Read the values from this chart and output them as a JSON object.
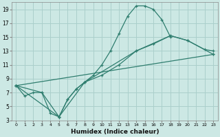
{
  "xlabel": "Humidex (Indice chaleur)",
  "xlim": [
    -0.5,
    23.5
  ],
  "ylim": [
    3,
    20
  ],
  "xticks": [
    0,
    1,
    2,
    3,
    4,
    5,
    6,
    7,
    8,
    9,
    10,
    11,
    12,
    13,
    14,
    15,
    16,
    17,
    18,
    19,
    20,
    21,
    22,
    23
  ],
  "yticks": [
    3,
    5,
    7,
    9,
    11,
    13,
    15,
    17,
    19
  ],
  "bg_color": "#cce8e4",
  "grid_color": "#aacfcb",
  "line_color": "#2e7d6e",
  "curve1_x": [
    0,
    1,
    2,
    3,
    4,
    5,
    6,
    7,
    8,
    9,
    10,
    11,
    12,
    13,
    14,
    15,
    16,
    17,
    18
  ],
  "curve1_y": [
    8,
    6.5,
    7,
    7,
    4,
    3.5,
    6,
    7.5,
    8.5,
    9.5,
    11,
    13,
    15.5,
    18,
    19.5,
    19.5,
    19,
    17.5,
    15
  ],
  "curve2_x": [
    0,
    3,
    5,
    6,
    7,
    8,
    10,
    12,
    14,
    16,
    18,
    20,
    22,
    23
  ],
  "curve2_y": [
    8,
    7,
    3.5,
    6,
    7.5,
    8.5,
    9.5,
    11,
    13,
    14,
    15.2,
    14.5,
    13.2,
    13
  ],
  "curve3_x": [
    0,
    5,
    8,
    14,
    18,
    20,
    23
  ],
  "curve3_y": [
    8,
    3.5,
    8.5,
    13,
    15.2,
    14.5,
    12.5
  ],
  "curve4_x": [
    0,
    23
  ],
  "curve4_y": [
    8,
    12.5
  ]
}
